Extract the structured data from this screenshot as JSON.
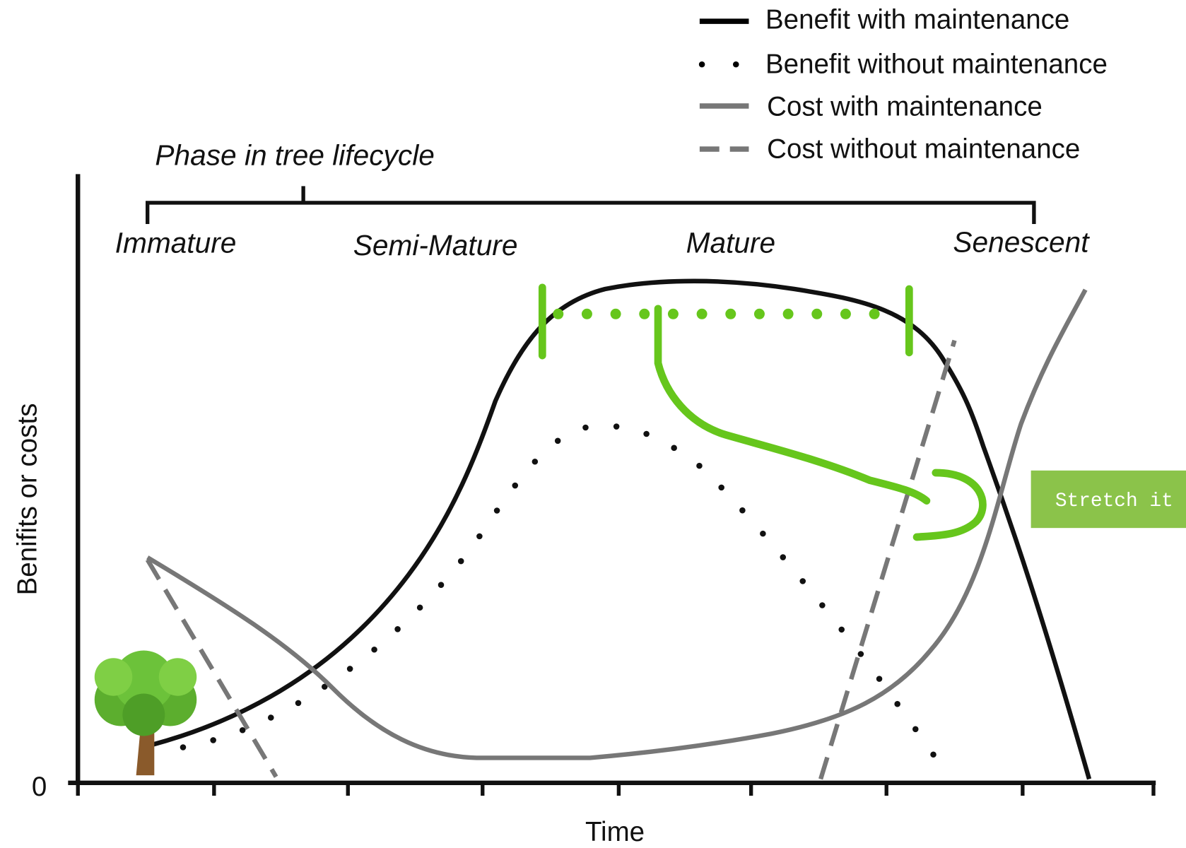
{
  "legend": [
    "Benefit with maintenance",
    "Benefit without maintenance",
    "Cost with maintenance",
    "Cost without maintenance"
  ],
  "phase_title": "Phase in tree lifecycle",
  "phases": [
    "Immature",
    "Semi-Mature",
    "Mature",
    "Senescent"
  ],
  "y_axis_label": "Benifits or costs",
  "y_origin_label": "0",
  "x_axis_label": "Time",
  "annotation": "Stretch it"
}
